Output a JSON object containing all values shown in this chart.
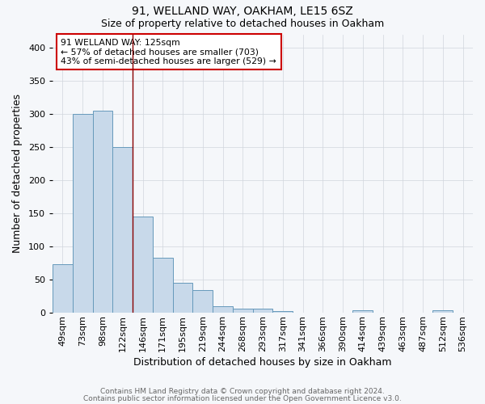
{
  "title1": "91, WELLAND WAY, OAKHAM, LE15 6SZ",
  "title2": "Size of property relative to detached houses in Oakham",
  "xlabel": "Distribution of detached houses by size in Oakham",
  "ylabel": "Number of detached properties",
  "footnote1": "Contains HM Land Registry data © Crown copyright and database right 2024.",
  "footnote2": "Contains public sector information licensed under the Open Government Licence v3.0.",
  "categories": [
    "49sqm",
    "73sqm",
    "98sqm",
    "122sqm",
    "146sqm",
    "171sqm",
    "195sqm",
    "219sqm",
    "244sqm",
    "268sqm",
    "293sqm",
    "317sqm",
    "341sqm",
    "366sqm",
    "390sqm",
    "414sqm",
    "439sqm",
    "463sqm",
    "487sqm",
    "512sqm",
    "536sqm"
  ],
  "values": [
    73,
    300,
    305,
    250,
    145,
    83,
    45,
    34,
    10,
    6,
    6,
    3,
    0,
    0,
    0,
    4,
    0,
    0,
    0,
    4,
    0
  ],
  "bar_color": "#c8d9ea",
  "bar_edge_color": "#6699bb",
  "annotation_line1": "91 WELLAND WAY: 125sqm",
  "annotation_line2": "← 57% of detached houses are smaller (703)",
  "annotation_line3": "43% of semi-detached houses are larger (529) →",
  "annotation_box_color": "white",
  "annotation_box_edge_color": "#cc0000",
  "vline_color": "#880000",
  "ylim": [
    0,
    420
  ],
  "yticks": [
    0,
    50,
    100,
    150,
    200,
    250,
    300,
    350,
    400
  ],
  "background_color": "#f5f7fa",
  "grid_color": "#d0d5dd",
  "title1_fontsize": 10,
  "title2_fontsize": 9,
  "tick_fontsize": 8,
  "ylabel_fontsize": 9,
  "xlabel_fontsize": 9,
  "footnote_fontsize": 6.5,
  "footnote_color": "#666666"
}
